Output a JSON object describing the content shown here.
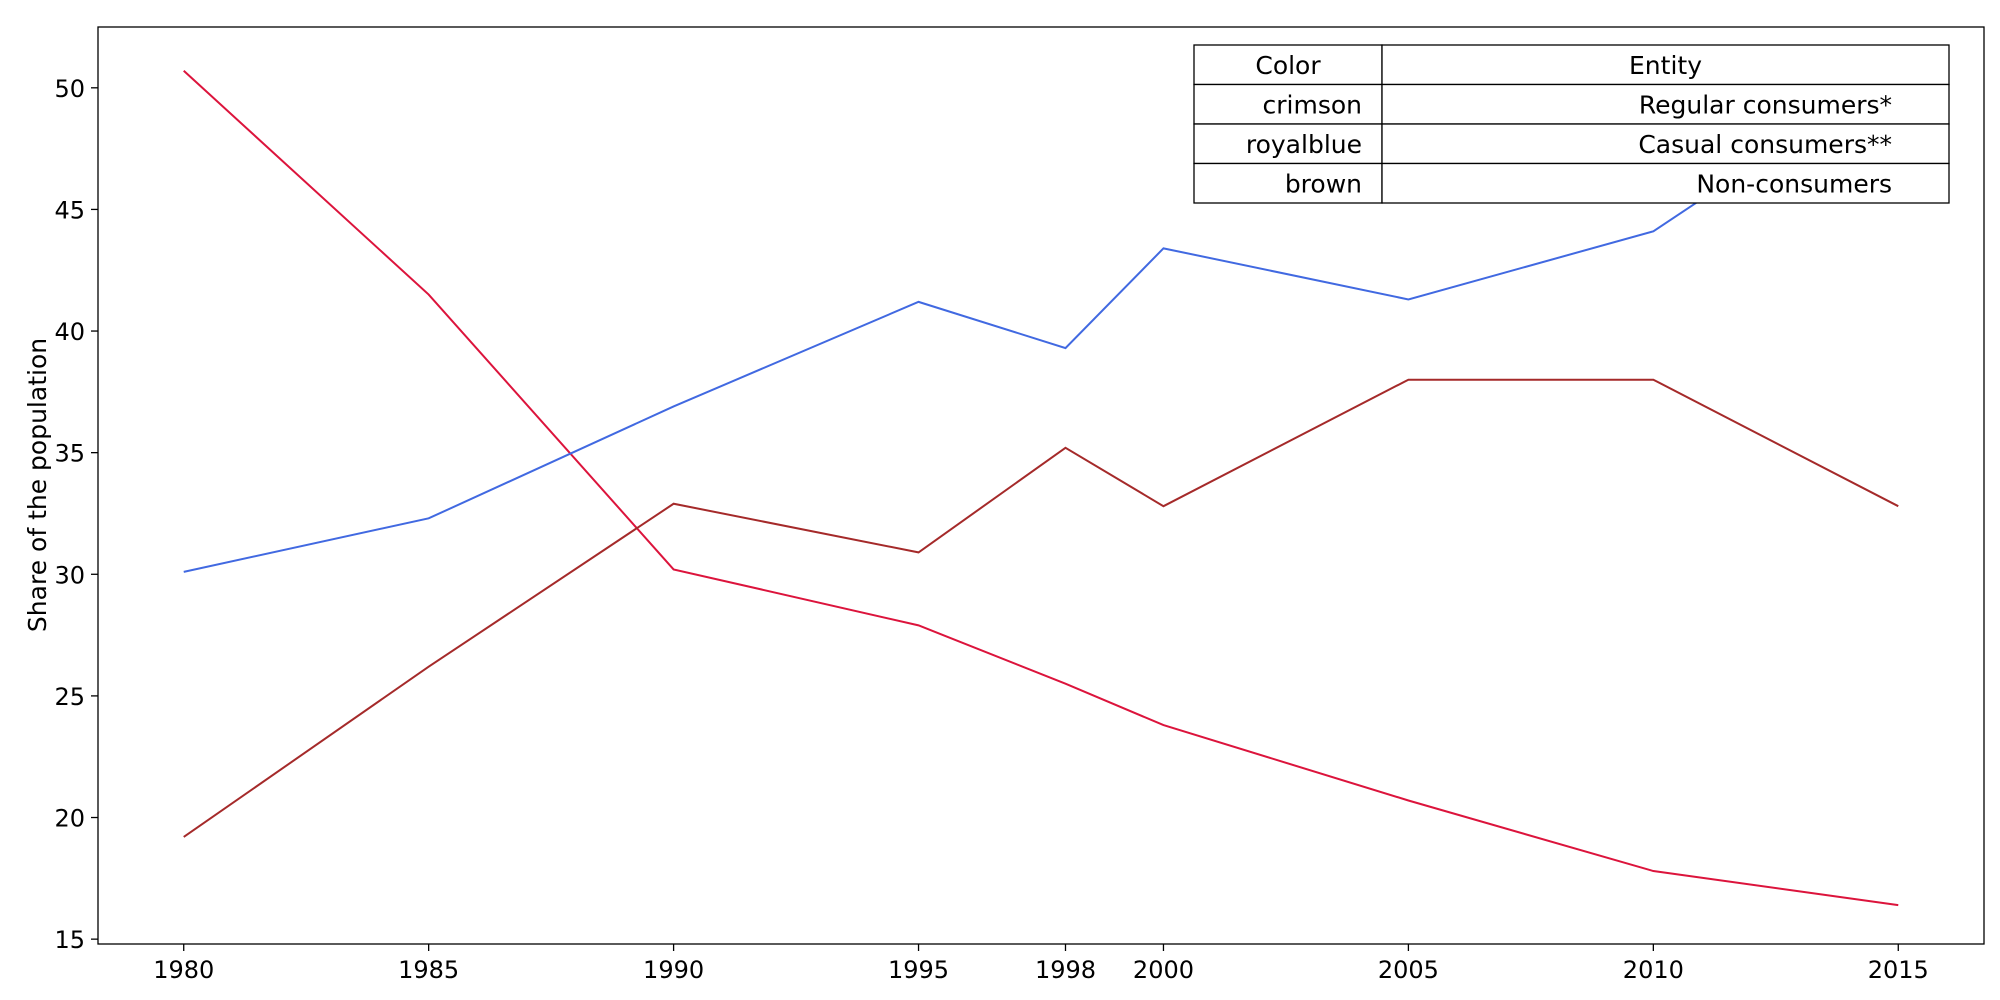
{
  "chart_data": {
    "type": "line",
    "title": "",
    "xlabel": "",
    "ylabel": "Share of the population",
    "x": [
      1980,
      1985,
      1990,
      1995,
      1998,
      2000,
      2005,
      2010,
      2015
    ],
    "xticks": [
      1980,
      1985,
      1990,
      1995,
      1998,
      2000,
      2005,
      2010,
      2015
    ],
    "yticks": [
      15,
      20,
      25,
      30,
      35,
      40,
      45,
      50
    ],
    "xlim": [
      1978.25,
      2016.75
    ],
    "ylim": [
      14.8,
      52.5
    ],
    "grid": false,
    "series": [
      {
        "name": "Regular consumers*",
        "color": "#dc143c",
        "values": [
          50.7,
          41.5,
          30.2,
          27.9,
          25.5,
          23.8,
          20.7,
          17.8,
          16.4
        ]
      },
      {
        "name": "Casual consumers**",
        "color": "#4169e1",
        "values": [
          30.1,
          32.3,
          36.9,
          41.2,
          39.3,
          43.4,
          41.3,
          44.1,
          50.8
        ]
      },
      {
        "name": "Non-consumers",
        "color": "#a52a2a",
        "values": [
          19.2,
          26.2,
          32.9,
          30.9,
          35.2,
          32.8,
          38.0,
          38.0,
          32.8
        ]
      }
    ],
    "legend_table": {
      "placement": "top-right",
      "headers": [
        "Color",
        "Entity"
      ],
      "rows": [
        [
          "crimson",
          "Regular consumers*"
        ],
        [
          "royalblue",
          "Casual consumers**"
        ],
        [
          "brown",
          "Non-consumers"
        ]
      ]
    }
  }
}
